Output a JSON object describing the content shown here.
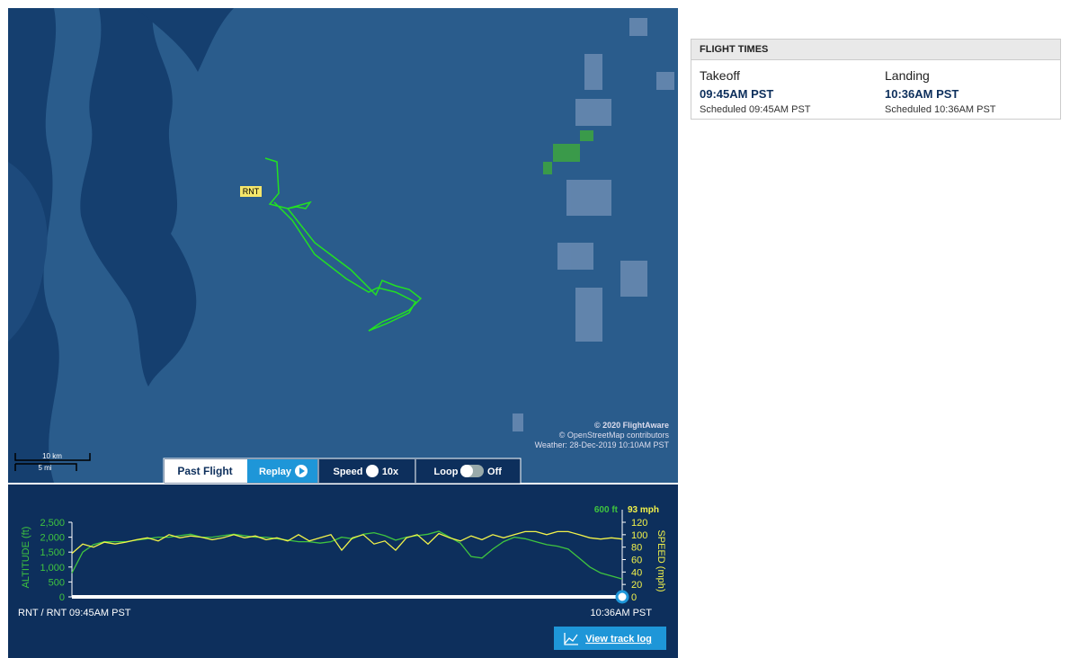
{
  "map": {
    "airport_label": "RNT",
    "attribution": [
      "© 2020 FlightAware",
      "© OpenStreetMap contributors",
      "Weather: 28-Dec-2019 10:10AM PST"
    ],
    "scale": [
      "10 km",
      "5 mi"
    ]
  },
  "controls": {
    "past_flight": "Past Flight",
    "replay": "Replay",
    "speed": "Speed",
    "speed_value": "10x",
    "loop": "Loop",
    "loop_state": "Off"
  },
  "chart_data": {
    "type": "line",
    "ylabel": "ALTITUDE (ft)",
    "y2label": "SPEED (mph)",
    "current_labels": [
      "600 ft",
      "93 mph"
    ],
    "x_labels": [
      "RNT / RNT 09:45AM PST",
      "10:36AM PST"
    ],
    "ylim": [
      0,
      2500
    ],
    "yticks": [
      0,
      500,
      {
        "value": 1000,
        "label": "1,000"
      },
      {
        "value": 1500,
        "label": "1,500"
      },
      {
        "value": 2000,
        "label": "2,000"
      },
      {
        "value": 2500,
        "label": "2,500"
      }
    ],
    "y2lim": [
      0,
      120
    ],
    "y2ticks": [
      0,
      20,
      40,
      60,
      80,
      100,
      120
    ],
    "series": [
      {
        "name": "Altitude",
        "color": "#3fc43f",
        "values": [
          800,
          1500,
          1750,
          1850,
          1850,
          1850,
          1900,
          1950,
          2000,
          2000,
          2050,
          2100,
          2000,
          2000,
          2050,
          2100,
          2050,
          2000,
          2000,
          1950,
          1900,
          1850,
          1850,
          1800,
          1850,
          2000,
          1950,
          2100,
          2150,
          2050,
          1900,
          2000,
          2050,
          2100,
          2200,
          2000,
          1800,
          1350,
          1300,
          1600,
          1850,
          2000,
          1950,
          1850,
          1750,
          1700,
          1600,
          1300,
          1000,
          800,
          700,
          600
        ]
      },
      {
        "name": "Speed",
        "color": "#f2f24a",
        "axis": "y2",
        "values": [
          70,
          85,
          80,
          88,
          85,
          88,
          92,
          95,
          90,
          100,
          95,
          98,
          96,
          92,
          95,
          100,
          95,
          98,
          92,
          95,
          90,
          100,
          90,
          95,
          100,
          75,
          95,
          100,
          85,
          90,
          75,
          95,
          100,
          85,
          102,
          95,
          90,
          98,
          92,
          100,
          95,
          100,
          105,
          105,
          100,
          105,
          105,
          100,
          95,
          93,
          95,
          93
        ]
      }
    ]
  },
  "track_log_button": "View track log",
  "flight_times": {
    "header": "FLIGHT TIMES",
    "takeoff": {
      "label": "Takeoff",
      "time": "09:45AM PST",
      "scheduled": "Scheduled 09:45AM PST"
    },
    "landing": {
      "label": "Landing",
      "time": "10:36AM PST",
      "scheduled": "Scheduled 10:36AM PST"
    }
  }
}
